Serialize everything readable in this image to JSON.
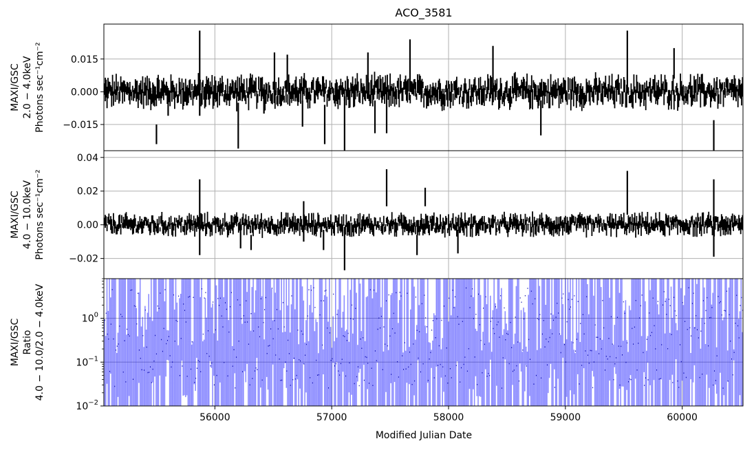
{
  "chart_data": {
    "type": "line",
    "title": "ACO_3581",
    "xlabel": "Modified Julian Date",
    "xlim": [
      55050,
      60520
    ],
    "x_ticks": [
      56000,
      57000,
      58000,
      59000,
      60000
    ],
    "x_tick_labels": [
      "56000",
      "57000",
      "58000",
      "59000",
      "60000"
    ],
    "grid": true,
    "panels": [
      {
        "id": "soft",
        "ylabel": [
          "MAXI/GSC",
          "2.0 − 4.0keV",
          "Photons sec⁻¹cm⁻²"
        ],
        "scale": "linear",
        "ylim": [
          -0.027,
          0.031
        ],
        "y_ticks": [
          0.015,
          0.0,
          -0.015
        ],
        "y_tick_labels": [
          "0.015",
          "0.000",
          "−0.015"
        ],
        "color": "#000000",
        "spikes": [
          {
            "x": 55500,
            "lo": -0.024,
            "hi": -0.015
          },
          {
            "x": 55600,
            "lo": -0.011,
            "hi": -0.002
          },
          {
            "x": 55870,
            "lo": -0.011,
            "hi": 0.028
          },
          {
            "x": 56200,
            "lo": -0.026,
            "hi": -0.005
          },
          {
            "x": 56420,
            "lo": -0.01,
            "hi": 0.002
          },
          {
            "x": 56510,
            "lo": 0.0,
            "hi": 0.018
          },
          {
            "x": 56620,
            "lo": 0.0,
            "hi": 0.017
          },
          {
            "x": 56750,
            "lo": -0.016,
            "hi": -0.004
          },
          {
            "x": 56940,
            "lo": -0.024,
            "hi": -0.006
          },
          {
            "x": 57110,
            "lo": -0.03,
            "hi": -0.002
          },
          {
            "x": 57310,
            "lo": -0.001,
            "hi": 0.018
          },
          {
            "x": 57370,
            "lo": -0.019,
            "hi": -0.004
          },
          {
            "x": 57470,
            "lo": -0.019,
            "hi": 0.001
          },
          {
            "x": 57670,
            "lo": 0.0,
            "hi": 0.024
          },
          {
            "x": 58380,
            "lo": 0.002,
            "hi": 0.021
          },
          {
            "x": 58790,
            "lo": -0.02,
            "hi": -0.004
          },
          {
            "x": 59530,
            "lo": 0.0,
            "hi": 0.028
          },
          {
            "x": 59930,
            "lo": 0.006,
            "hi": 0.02
          },
          {
            "x": 60270,
            "lo": -0.029,
            "hi": -0.013
          }
        ]
      },
      {
        "id": "hard",
        "ylabel": [
          "MAXI/GSC",
          "4.0 − 10.0keV",
          "Photons sec⁻¹cm⁻²"
        ],
        "scale": "linear",
        "ylim": [
          -0.032,
          0.044
        ],
        "y_ticks": [
          0.04,
          0.02,
          0.0,
          -0.02
        ],
        "y_tick_labels": [
          "0.04",
          "0.02",
          "0.00",
          "−0.02"
        ],
        "color": "#000000",
        "spikes": [
          {
            "x": 55870,
            "lo": -0.018,
            "hi": 0.027
          },
          {
            "x": 56220,
            "lo": -0.014,
            "hi": 0.0
          },
          {
            "x": 56310,
            "lo": -0.015,
            "hi": -0.006
          },
          {
            "x": 56760,
            "lo": -0.01,
            "hi": 0.014
          },
          {
            "x": 56930,
            "lo": -0.015,
            "hi": -0.003
          },
          {
            "x": 57110,
            "lo": -0.027,
            "hi": -0.003
          },
          {
            "x": 57470,
            "lo": 0.011,
            "hi": 0.033
          },
          {
            "x": 57730,
            "lo": -0.018,
            "hi": -0.006
          },
          {
            "x": 57800,
            "lo": 0.011,
            "hi": 0.022
          },
          {
            "x": 58080,
            "lo": -0.017,
            "hi": -0.003
          },
          {
            "x": 59530,
            "lo": 0.006,
            "hi": 0.032
          },
          {
            "x": 60270,
            "lo": -0.019,
            "hi": 0.027
          }
        ]
      },
      {
        "id": "ratio",
        "ylabel": [
          "MAXI/GSC",
          "Ratio",
          "4.0 − 10.0/2.0 − 4.0keV"
        ],
        "scale": "log",
        "ylim": [
          0.01,
          8.0
        ],
        "y_ticks": [
          1.0,
          0.1,
          0.01
        ],
        "y_tick_labels": [
          [
            "10",
            "0"
          ],
          [
            "10",
            "−1"
          ],
          [
            "10",
            "−2"
          ]
        ],
        "color": "#0000ff"
      }
    ]
  }
}
